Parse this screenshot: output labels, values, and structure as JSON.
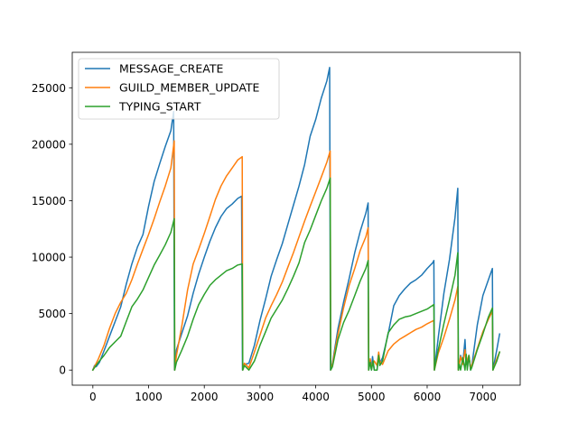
{
  "chart_data": {
    "type": "line",
    "title": "",
    "xlabel": "",
    "ylabel": "",
    "xlim": [
      -370,
      7670
    ],
    "ylim": [
      -1340,
      28140
    ],
    "xticks": [
      0,
      1000,
      2000,
      3000,
      4000,
      5000,
      6000,
      7000
    ],
    "yticks": [
      0,
      5000,
      10000,
      15000,
      20000,
      25000
    ],
    "grid": false,
    "legend": "top-left",
    "series": [
      {
        "name": "MESSAGE_CREATE",
        "color": "#1f77b4",
        "points": [
          [
            0,
            0
          ],
          [
            30,
            400
          ],
          [
            60,
            300
          ],
          [
            120,
            700
          ],
          [
            200,
            1700
          ],
          [
            300,
            3000
          ],
          [
            400,
            4300
          ],
          [
            500,
            5600
          ],
          [
            600,
            7600
          ],
          [
            700,
            9400
          ],
          [
            800,
            10900
          ],
          [
            900,
            12000
          ],
          [
            1000,
            14500
          ],
          [
            1100,
            16700
          ],
          [
            1200,
            18300
          ],
          [
            1300,
            19800
          ],
          [
            1400,
            21200
          ],
          [
            1450,
            22900
          ],
          [
            1465,
            0
          ],
          [
            1500,
            1800
          ],
          [
            1600,
            3300
          ],
          [
            1700,
            4800
          ],
          [
            1800,
            6800
          ],
          [
            1900,
            8500
          ],
          [
            2000,
            10000
          ],
          [
            2100,
            11400
          ],
          [
            2200,
            12600
          ],
          [
            2300,
            13600
          ],
          [
            2400,
            14300
          ],
          [
            2500,
            14700
          ],
          [
            2600,
            15200
          ],
          [
            2670,
            15400
          ],
          [
            2685,
            0
          ],
          [
            2720,
            500
          ],
          [
            2800,
            600
          ],
          [
            2900,
            2200
          ],
          [
            3000,
            4400
          ],
          [
            3100,
            6300
          ],
          [
            3200,
            8300
          ],
          [
            3300,
            9800
          ],
          [
            3400,
            11200
          ],
          [
            3500,
            12900
          ],
          [
            3600,
            14600
          ],
          [
            3700,
            16300
          ],
          [
            3800,
            18200
          ],
          [
            3900,
            20700
          ],
          [
            4000,
            22200
          ],
          [
            4100,
            24100
          ],
          [
            4200,
            25600
          ],
          [
            4250,
            26800
          ],
          [
            4265,
            0
          ],
          [
            4300,
            600
          ],
          [
            4400,
            3700
          ],
          [
            4500,
            6000
          ],
          [
            4600,
            8100
          ],
          [
            4700,
            10400
          ],
          [
            4800,
            12300
          ],
          [
            4900,
            13900
          ],
          [
            4940,
            14800
          ],
          [
            4950,
            0
          ],
          [
            4980,
            800
          ],
          [
            5000,
            0
          ],
          [
            5020,
            1200
          ],
          [
            5050,
            0
          ],
          [
            5100,
            0
          ],
          [
            5130,
            1500
          ],
          [
            5150,
            600
          ],
          [
            5200,
            1100
          ],
          [
            5300,
            3200
          ],
          [
            5400,
            5700
          ],
          [
            5500,
            6600
          ],
          [
            5600,
            7200
          ],
          [
            5700,
            7700
          ],
          [
            5800,
            8000
          ],
          [
            5900,
            8400
          ],
          [
            6000,
            9000
          ],
          [
            6100,
            9500
          ],
          [
            6120,
            9700
          ],
          [
            6130,
            0
          ],
          [
            6200,
            2900
          ],
          [
            6300,
            6800
          ],
          [
            6400,
            9800
          ],
          [
            6500,
            13500
          ],
          [
            6550,
            16100
          ],
          [
            6560,
            0
          ],
          [
            6580,
            600
          ],
          [
            6600,
            1300
          ],
          [
            6640,
            600
          ],
          [
            6680,
            2700
          ],
          [
            6700,
            500
          ],
          [
            6720,
            700
          ],
          [
            6750,
            1300
          ],
          [
            6780,
            0
          ],
          [
            6800,
            300
          ],
          [
            6900,
            4000
          ],
          [
            7000,
            6600
          ],
          [
            7100,
            8000
          ],
          [
            7170,
            9000
          ],
          [
            7180,
            0
          ],
          [
            7250,
            1800
          ],
          [
            7300,
            3200
          ]
        ]
      },
      {
        "name": "GUILD_MEMBER_UPDATE",
        "color": "#ff7f0e",
        "points": [
          [
            0,
            0
          ],
          [
            100,
            1000
          ],
          [
            200,
            2200
          ],
          [
            300,
            3700
          ],
          [
            400,
            5000
          ],
          [
            500,
            6000
          ],
          [
            600,
            6800
          ],
          [
            700,
            8000
          ],
          [
            800,
            9400
          ],
          [
            900,
            10700
          ],
          [
            1000,
            12000
          ],
          [
            1100,
            13400
          ],
          [
            1200,
            14900
          ],
          [
            1300,
            16300
          ],
          [
            1400,
            17900
          ],
          [
            1460,
            20300
          ],
          [
            1470,
            0
          ],
          [
            1500,
            1300
          ],
          [
            1600,
            4000
          ],
          [
            1700,
            7100
          ],
          [
            1800,
            9400
          ],
          [
            1900,
            10700
          ],
          [
            2000,
            12100
          ],
          [
            2100,
            13600
          ],
          [
            2200,
            15100
          ],
          [
            2300,
            16300
          ],
          [
            2400,
            17200
          ],
          [
            2500,
            17900
          ],
          [
            2600,
            18600
          ],
          [
            2680,
            18900
          ],
          [
            2690,
            0
          ],
          [
            2720,
            600
          ],
          [
            2800,
            200
          ],
          [
            2900,
            1600
          ],
          [
            3000,
            3100
          ],
          [
            3100,
            4600
          ],
          [
            3200,
            5700
          ],
          [
            3300,
            6700
          ],
          [
            3400,
            7800
          ],
          [
            3500,
            9100
          ],
          [
            3600,
            10400
          ],
          [
            3700,
            11800
          ],
          [
            3800,
            13200
          ],
          [
            3900,
            14500
          ],
          [
            4000,
            15800
          ],
          [
            4100,
            17100
          ],
          [
            4200,
            18400
          ],
          [
            4260,
            19400
          ],
          [
            4270,
            0
          ],
          [
            4300,
            500
          ],
          [
            4400,
            3200
          ],
          [
            4500,
            5500
          ],
          [
            4600,
            7500
          ],
          [
            4700,
            9000
          ],
          [
            4800,
            10600
          ],
          [
            4900,
            11800
          ],
          [
            4940,
            12600
          ],
          [
            4950,
            0
          ],
          [
            4980,
            1000
          ],
          [
            5000,
            200
          ],
          [
            5050,
            800
          ],
          [
            5100,
            400
          ],
          [
            5130,
            1600
          ],
          [
            5150,
            800
          ],
          [
            5200,
            500
          ],
          [
            5300,
            1700
          ],
          [
            5400,
            2300
          ],
          [
            5500,
            2700
          ],
          [
            5600,
            3000
          ],
          [
            5700,
            3300
          ],
          [
            5800,
            3600
          ],
          [
            5900,
            3800
          ],
          [
            6000,
            4100
          ],
          [
            6120,
            4400
          ],
          [
            6130,
            0
          ],
          [
            6200,
            1500
          ],
          [
            6300,
            2900
          ],
          [
            6400,
            4500
          ],
          [
            6500,
            6200
          ],
          [
            6550,
            7400
          ],
          [
            6560,
            0
          ],
          [
            6600,
            1200
          ],
          [
            6640,
            500
          ],
          [
            6680,
            1800
          ],
          [
            6700,
            600
          ],
          [
            6750,
            1300
          ],
          [
            6780,
            100
          ],
          [
            6800,
            400
          ],
          [
            6900,
            1900
          ],
          [
            7000,
            3400
          ],
          [
            7100,
            4500
          ],
          [
            7170,
            5200
          ],
          [
            7180,
            0
          ],
          [
            7250,
            1000
          ],
          [
            7300,
            1600
          ]
        ]
      },
      {
        "name": "TYPING_START",
        "color": "#2ca02c",
        "points": [
          [
            0,
            0
          ],
          [
            100,
            700
          ],
          [
            200,
            1300
          ],
          [
            300,
            2000
          ],
          [
            400,
            2500
          ],
          [
            500,
            3000
          ],
          [
            600,
            4300
          ],
          [
            700,
            5600
          ],
          [
            800,
            6300
          ],
          [
            900,
            7100
          ],
          [
            1000,
            8200
          ],
          [
            1100,
            9300
          ],
          [
            1200,
            10200
          ],
          [
            1300,
            11100
          ],
          [
            1400,
            12200
          ],
          [
            1460,
            13400
          ],
          [
            1470,
            0
          ],
          [
            1500,
            700
          ],
          [
            1600,
            1800
          ],
          [
            1700,
            3000
          ],
          [
            1800,
            4500
          ],
          [
            1900,
            5800
          ],
          [
            2000,
            6700
          ],
          [
            2100,
            7500
          ],
          [
            2200,
            8000
          ],
          [
            2300,
            8400
          ],
          [
            2400,
            8800
          ],
          [
            2500,
            9000
          ],
          [
            2600,
            9300
          ],
          [
            2680,
            9400
          ],
          [
            2690,
            0
          ],
          [
            2720,
            400
          ],
          [
            2800,
            0
          ],
          [
            2900,
            800
          ],
          [
            3000,
            2200
          ],
          [
            3100,
            3400
          ],
          [
            3200,
            4600
          ],
          [
            3300,
            5400
          ],
          [
            3400,
            6200
          ],
          [
            3500,
            7200
          ],
          [
            3600,
            8300
          ],
          [
            3700,
            9500
          ],
          [
            3800,
            11300
          ],
          [
            3900,
            12400
          ],
          [
            4000,
            13700
          ],
          [
            4100,
            15000
          ],
          [
            4200,
            16100
          ],
          [
            4260,
            17000
          ],
          [
            4270,
            0
          ],
          [
            4300,
            300
          ],
          [
            4400,
            2700
          ],
          [
            4500,
            4200
          ],
          [
            4600,
            5300
          ],
          [
            4700,
            6600
          ],
          [
            4800,
            7900
          ],
          [
            4900,
            9000
          ],
          [
            4940,
            9700
          ],
          [
            4950,
            0
          ],
          [
            4980,
            700
          ],
          [
            5000,
            0
          ],
          [
            5030,
            800
          ],
          [
            5050,
            0
          ],
          [
            5100,
            0
          ],
          [
            5130,
            1300
          ],
          [
            5150,
            400
          ],
          [
            5200,
            800
          ],
          [
            5300,
            3300
          ],
          [
            5400,
            4000
          ],
          [
            5500,
            4500
          ],
          [
            5600,
            4700
          ],
          [
            5700,
            4800
          ],
          [
            5800,
            5000
          ],
          [
            5900,
            5200
          ],
          [
            6000,
            5400
          ],
          [
            6120,
            5800
          ],
          [
            6130,
            0
          ],
          [
            6200,
            1800
          ],
          [
            6300,
            4100
          ],
          [
            6400,
            6200
          ],
          [
            6500,
            8400
          ],
          [
            6550,
            10400
          ],
          [
            6560,
            0
          ],
          [
            6580,
            500
          ],
          [
            6600,
            0
          ],
          [
            6640,
            1100
          ],
          [
            6680,
            0
          ],
          [
            6700,
            1400
          ],
          [
            6720,
            0
          ],
          [
            6750,
            1300
          ],
          [
            6780,
            0
          ],
          [
            6800,
            200
          ],
          [
            6900,
            1800
          ],
          [
            7000,
            3200
          ],
          [
            7100,
            4700
          ],
          [
            7170,
            5500
          ],
          [
            7180,
            0
          ],
          [
            7250,
            800
          ],
          [
            7300,
            1600
          ]
        ]
      }
    ]
  }
}
